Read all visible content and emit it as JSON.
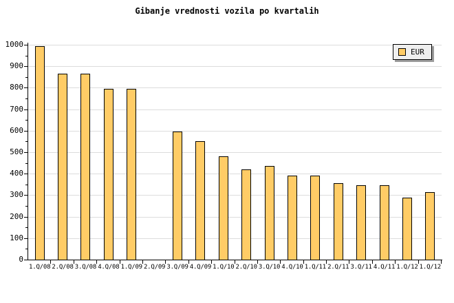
{
  "chart": {
    "title": "Gibanje vrednosti vozila po kvartalih",
    "legend_label": "EUR"
  },
  "chart_data": {
    "type": "bar",
    "title": "Gibanje vrednosti vozila po kvartalih",
    "categories": [
      "1.Q/08",
      "2.Q/08",
      "3.Q/08",
      "4.Q/08",
      "1.Q/09",
      "2.Q/09",
      "3.Q/09",
      "4.Q/09",
      "1.Q/10",
      "2.Q/10",
      "3.Q/10",
      "4.Q/10",
      "1.Q/11",
      "2.Q/11",
      "3.Q/11",
      "4.Q/11",
      "1.Q/12",
      "1.Q/12"
    ],
    "series": [
      {
        "name": "EUR",
        "values": [
          995,
          865,
          865,
          795,
          795,
          null,
          595,
          550,
          480,
          420,
          435,
          390,
          390,
          355,
          345,
          345,
          290,
          315
        ]
      }
    ],
    "xlabel": "",
    "ylabel": "",
    "ylim": [
      0,
      1000
    ],
    "ytick_step": 100,
    "y_minor_step": 50,
    "grid": "horizontal-major",
    "legend_position": "top-right-inside",
    "colors": {
      "bar_fill": "#FFCC66",
      "bar_border": "#000000",
      "gridline": "#DCDCDC",
      "axis": "#000000",
      "legend_bg": "#EFEFEF",
      "legend_border": "#000000",
      "legend_shadow": "#9C9C9C",
      "background": "#FFFFFF"
    }
  }
}
